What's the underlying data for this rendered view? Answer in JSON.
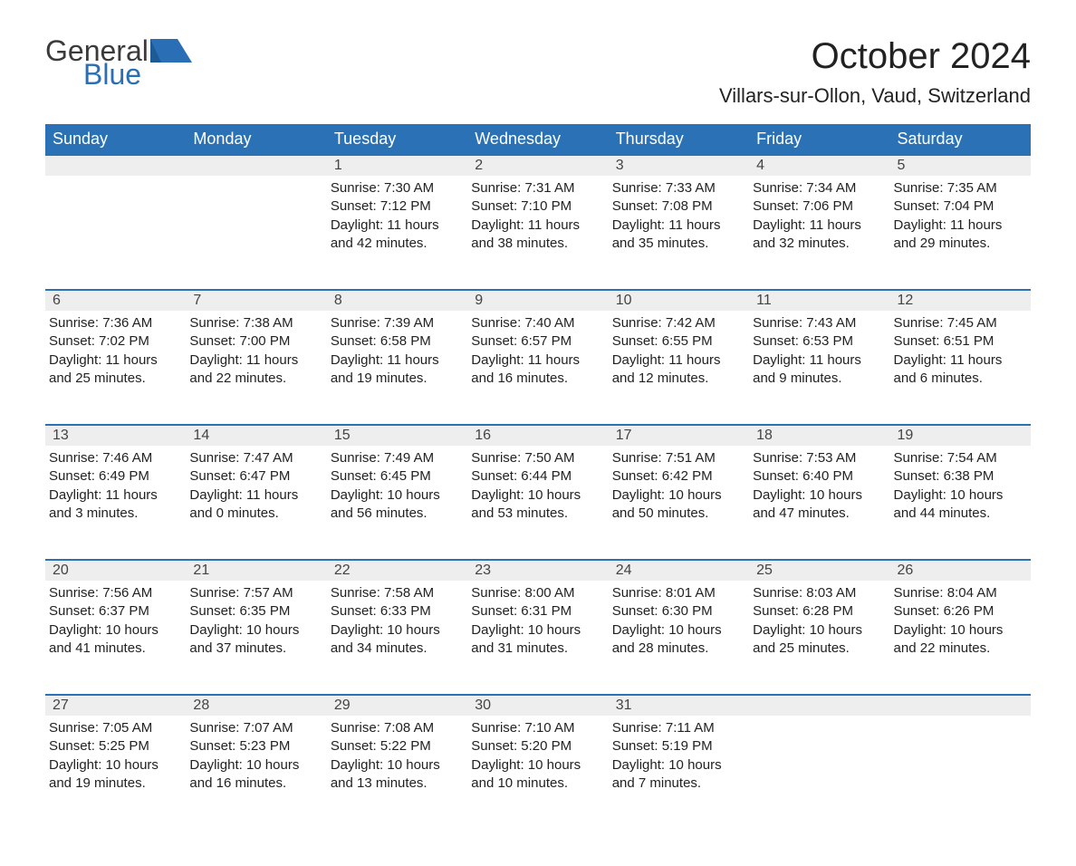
{
  "logo": {
    "text1": "General",
    "text2": "Blue"
  },
  "title": "October 2024",
  "location": "Villars-sur-Ollon, Vaud, Switzerland",
  "colors": {
    "header_bg": "#2a72b5",
    "header_text": "#ffffff",
    "daynum_bg": "#eeeeee",
    "daynum_border": "#2a72b5",
    "text": "#222222",
    "logo_gray": "#3a3a3a",
    "logo_blue": "#2a6fb5",
    "page_bg": "#ffffff"
  },
  "fonts": {
    "title_pt": 40,
    "location_pt": 22,
    "header_pt": 18,
    "body_pt": 15,
    "daynum_pt": 16
  },
  "weekdays": [
    "Sunday",
    "Monday",
    "Tuesday",
    "Wednesday",
    "Thursday",
    "Friday",
    "Saturday"
  ],
  "weeks": [
    [
      null,
      null,
      {
        "n": "1",
        "sr": "7:30 AM",
        "ss": "7:12 PM",
        "dl": "11 hours and 42 minutes."
      },
      {
        "n": "2",
        "sr": "7:31 AM",
        "ss": "7:10 PM",
        "dl": "11 hours and 38 minutes."
      },
      {
        "n": "3",
        "sr": "7:33 AM",
        "ss": "7:08 PM",
        "dl": "11 hours and 35 minutes."
      },
      {
        "n": "4",
        "sr": "7:34 AM",
        "ss": "7:06 PM",
        "dl": "11 hours and 32 minutes."
      },
      {
        "n": "5",
        "sr": "7:35 AM",
        "ss": "7:04 PM",
        "dl": "11 hours and 29 minutes."
      }
    ],
    [
      {
        "n": "6",
        "sr": "7:36 AM",
        "ss": "7:02 PM",
        "dl": "11 hours and 25 minutes."
      },
      {
        "n": "7",
        "sr": "7:38 AM",
        "ss": "7:00 PM",
        "dl": "11 hours and 22 minutes."
      },
      {
        "n": "8",
        "sr": "7:39 AM",
        "ss": "6:58 PM",
        "dl": "11 hours and 19 minutes."
      },
      {
        "n": "9",
        "sr": "7:40 AM",
        "ss": "6:57 PM",
        "dl": "11 hours and 16 minutes."
      },
      {
        "n": "10",
        "sr": "7:42 AM",
        "ss": "6:55 PM",
        "dl": "11 hours and 12 minutes."
      },
      {
        "n": "11",
        "sr": "7:43 AM",
        "ss": "6:53 PM",
        "dl": "11 hours and 9 minutes."
      },
      {
        "n": "12",
        "sr": "7:45 AM",
        "ss": "6:51 PM",
        "dl": "11 hours and 6 minutes."
      }
    ],
    [
      {
        "n": "13",
        "sr": "7:46 AM",
        "ss": "6:49 PM",
        "dl": "11 hours and 3 minutes."
      },
      {
        "n": "14",
        "sr": "7:47 AM",
        "ss": "6:47 PM",
        "dl": "11 hours and 0 minutes."
      },
      {
        "n": "15",
        "sr": "7:49 AM",
        "ss": "6:45 PM",
        "dl": "10 hours and 56 minutes."
      },
      {
        "n": "16",
        "sr": "7:50 AM",
        "ss": "6:44 PM",
        "dl": "10 hours and 53 minutes."
      },
      {
        "n": "17",
        "sr": "7:51 AM",
        "ss": "6:42 PM",
        "dl": "10 hours and 50 minutes."
      },
      {
        "n": "18",
        "sr": "7:53 AM",
        "ss": "6:40 PM",
        "dl": "10 hours and 47 minutes."
      },
      {
        "n": "19",
        "sr": "7:54 AM",
        "ss": "6:38 PM",
        "dl": "10 hours and 44 minutes."
      }
    ],
    [
      {
        "n": "20",
        "sr": "7:56 AM",
        "ss": "6:37 PM",
        "dl": "10 hours and 41 minutes."
      },
      {
        "n": "21",
        "sr": "7:57 AM",
        "ss": "6:35 PM",
        "dl": "10 hours and 37 minutes."
      },
      {
        "n": "22",
        "sr": "7:58 AM",
        "ss": "6:33 PM",
        "dl": "10 hours and 34 minutes."
      },
      {
        "n": "23",
        "sr": "8:00 AM",
        "ss": "6:31 PM",
        "dl": "10 hours and 31 minutes."
      },
      {
        "n": "24",
        "sr": "8:01 AM",
        "ss": "6:30 PM",
        "dl": "10 hours and 28 minutes."
      },
      {
        "n": "25",
        "sr": "8:03 AM",
        "ss": "6:28 PM",
        "dl": "10 hours and 25 minutes."
      },
      {
        "n": "26",
        "sr": "8:04 AM",
        "ss": "6:26 PM",
        "dl": "10 hours and 22 minutes."
      }
    ],
    [
      {
        "n": "27",
        "sr": "7:05 AM",
        "ss": "5:25 PM",
        "dl": "10 hours and 19 minutes."
      },
      {
        "n": "28",
        "sr": "7:07 AM",
        "ss": "5:23 PM",
        "dl": "10 hours and 16 minutes."
      },
      {
        "n": "29",
        "sr": "7:08 AM",
        "ss": "5:22 PM",
        "dl": "10 hours and 13 minutes."
      },
      {
        "n": "30",
        "sr": "7:10 AM",
        "ss": "5:20 PM",
        "dl": "10 hours and 10 minutes."
      },
      {
        "n": "31",
        "sr": "7:11 AM",
        "ss": "5:19 PM",
        "dl": "10 hours and 7 minutes."
      },
      null,
      null
    ]
  ],
  "labels": {
    "sunrise": "Sunrise: ",
    "sunset": "Sunset: ",
    "daylight": "Daylight: "
  }
}
